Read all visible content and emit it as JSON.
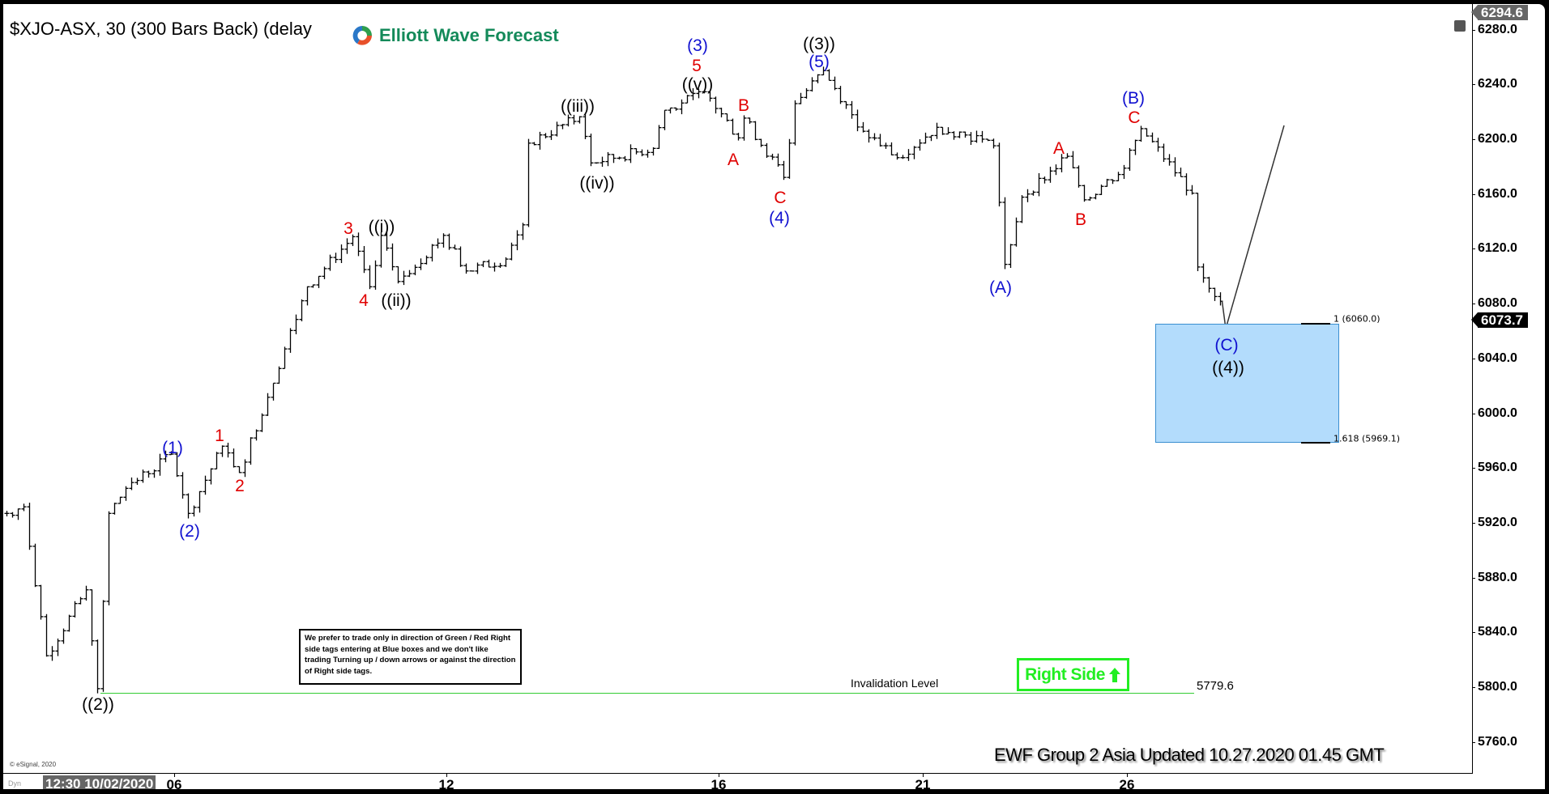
{
  "header": {
    "title": "$XJO-ASX, 30 (300 Bars Back) (delay",
    "logo_text": "Elliott Wave Forecast"
  },
  "price_tags": {
    "high": "6294.6",
    "current": "6073.7"
  },
  "cursor_time": "12:30 10/02/2020",
  "dyn_label": "Dyn",
  "copyright": "© eSignal, 2020",
  "footer": "EWF Group 2 Asia Updated 10.27.2020 01.45 GMT",
  "note": "We prefer to trade only in direction of Green / Red Right side tags entering at Blue boxes and we don't like trading Turning up / down arrows or against the direction of Right side tags.",
  "right_side_tag": {
    "label": "Right Side",
    "icon": "arrow-up-icon",
    "color": "#22ee22"
  },
  "invalidation": {
    "label": "Invalidation Level",
    "value": "5779.6",
    "price": 5779.6,
    "color": "#33cc33"
  },
  "blue_box": {
    "color": "#b3dcfc",
    "levels": [
      {
        "label": "1 (6060.0)",
        "price": 6060.0
      },
      {
        "label": "1.618 (5969.1)",
        "price": 5969.1
      }
    ]
  },
  "colors": {
    "blue_label": "#1010d0",
    "red_label": "#e00000",
    "bars": "#000000"
  },
  "chart_data": {
    "type": "ohlc-bar",
    "symbol": "$XJO-ASX",
    "interval_minutes": 30,
    "ylim": [
      5740,
      6300
    ],
    "y_ticks": [
      "6280.0",
      "6240.0",
      "6200.0",
      "6160.0",
      "6120.0",
      "6080.0",
      "6040.0",
      "6000.0",
      "5960.0",
      "5920.0",
      "5880.0",
      "5840.0",
      "5800.0",
      "5760.0"
    ],
    "x_ticks": [
      "06",
      "12",
      "16",
      "21",
      "26"
    ],
    "grid": false,
    "price_path": [
      {
        "t": "10-01 13:00",
        "p": 5913
      },
      {
        "t": "10-01 14:30",
        "p": 5918
      },
      {
        "t": "10-02 10:30",
        "p": 5805
      },
      {
        "t": "10-02 14:00",
        "p": 5855
      },
      {
        "t": "10-02 15:00",
        "p": 5780
      },
      {
        "t": "10-05 10:00",
        "p": 5913
      },
      {
        "t": "10-05 11:30",
        "p": 5932
      },
      {
        "t": "10-05 15:30",
        "p": 5958
      },
      {
        "t": "10-06 11:00",
        "p": 5913
      },
      {
        "t": "10-06 14:00",
        "p": 5964
      },
      {
        "t": "10-06 15:30",
        "p": 5944
      },
      {
        "t": "10-07 15:30",
        "p": 6085
      },
      {
        "t": "10-08 13:30",
        "p": 6123
      },
      {
        "t": "10-08 15:00",
        "p": 6085
      },
      {
        "t": "10-09 10:00",
        "p": 6124
      },
      {
        "t": "10-09 11:30",
        "p": 6089
      },
      {
        "t": "10-09 15:30",
        "p": 6124
      },
      {
        "t": "10-12 11:30",
        "p": 6097
      },
      {
        "t": "10-12 15:00",
        "p": 6106
      },
      {
        "t": "10-13 10:30",
        "p": 6132
      },
      {
        "t": "10-13 11:00",
        "p": 6194
      },
      {
        "t": "10-13 15:30",
        "p": 6214
      },
      {
        "t": "10-14 10:30",
        "p": 6179
      },
      {
        "t": "10-15 10:00",
        "p": 6190
      },
      {
        "t": "10-15 11:00",
        "p": 6219
      },
      {
        "t": "10-15 14:30",
        "p": 6233
      },
      {
        "t": "10-16 11:30",
        "p": 6198
      },
      {
        "t": "10-16 12:00",
        "p": 6213
      },
      {
        "t": "10-16 15:30",
        "p": 6168
      },
      {
        "t": "10-19 10:30",
        "p": 6224
      },
      {
        "t": "10-19 13:00",
        "p": 6249
      },
      {
        "t": "10-20 10:30",
        "p": 6203
      },
      {
        "t": "10-20 13:30",
        "p": 6183
      },
      {
        "t": "10-21 11:00",
        "p": 6206
      },
      {
        "t": "10-21 15:00",
        "p": 6197
      },
      {
        "t": "10-22 10:00",
        "p": 6192
      },
      {
        "t": "10-22 11:00",
        "p": 6102
      },
      {
        "t": "10-22 12:30",
        "p": 6153
      },
      {
        "t": "10-23 10:30",
        "p": 6184
      },
      {
        "t": "10-23 12:00",
        "p": 6151
      },
      {
        "t": "10-23 15:30",
        "p": 6175
      },
      {
        "t": "10-26 11:00",
        "p": 6205
      },
      {
        "t": "10-26 15:30",
        "p": 6156
      },
      {
        "t": "10-27 10:00",
        "p": 6100
      },
      {
        "t": "10-27 12:00",
        "p": 6074
      }
    ],
    "wave_labels": [
      {
        "text": "((2))",
        "color": "black"
      },
      {
        "text": "(1)",
        "color": "blue"
      },
      {
        "text": "(2)",
        "color": "blue"
      },
      {
        "text": "1",
        "color": "red"
      },
      {
        "text": "2",
        "color": "red"
      },
      {
        "text": "3",
        "color": "red"
      },
      {
        "text": "((i))",
        "color": "black"
      },
      {
        "text": "4",
        "color": "red"
      },
      {
        "text": "((ii))",
        "color": "black"
      },
      {
        "text": "((iii))",
        "color": "black"
      },
      {
        "text": "((iv))",
        "color": "black"
      },
      {
        "text": "(3)",
        "color": "blue"
      },
      {
        "text": "5",
        "color": "red"
      },
      {
        "text": "((v))",
        "color": "black"
      },
      {
        "text": "A",
        "color": "red"
      },
      {
        "text": "B",
        "color": "red"
      },
      {
        "text": "C",
        "color": "red"
      },
      {
        "text": "(4)",
        "color": "blue"
      },
      {
        "text": "((3))",
        "color": "black"
      },
      {
        "text": "(5)",
        "color": "blue"
      },
      {
        "text": "(A)",
        "color": "blue"
      },
      {
        "text": "A",
        "color": "red"
      },
      {
        "text": "B",
        "color": "red"
      },
      {
        "text": "(B)",
        "color": "blue"
      },
      {
        "text": "C",
        "color": "red"
      },
      {
        "text": "(C)",
        "color": "blue"
      },
      {
        "text": "((4))",
        "color": "black"
      }
    ]
  }
}
